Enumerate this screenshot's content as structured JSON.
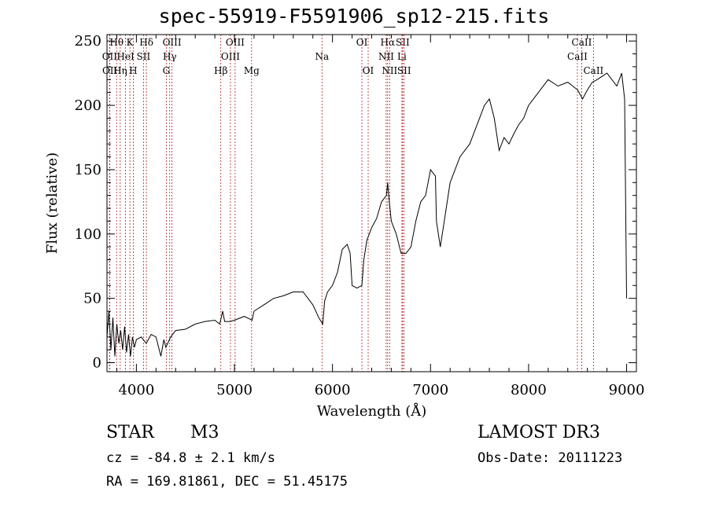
{
  "chart_data": {
    "type": "line",
    "title": "spec-55919-F5591906_sp12-215.fits",
    "xlabel": "Wavelength (Å)",
    "ylabel": "Flux (relative)",
    "xlim": [
      3700,
      9100
    ],
    "ylim": [
      -7,
      255
    ],
    "xticks": [
      4000,
      5000,
      6000,
      7000,
      8000,
      9000
    ],
    "yticks": [
      0,
      50,
      100,
      150,
      200,
      250
    ],
    "line_color": "#b22222",
    "series": [
      {
        "name": "flux",
        "x": [
          3700,
          3720,
          3740,
          3760,
          3780,
          3800,
          3820,
          3840,
          3860,
          3880,
          3900,
          3920,
          3940,
          3960,
          3980,
          4000,
          4050,
          4100,
          4150,
          4200,
          4250,
          4280,
          4300,
          4350,
          4400,
          4500,
          4600,
          4700,
          4800,
          4850,
          4880,
          4900,
          4950,
          5000,
          5100,
          5180,
          5200,
          5300,
          5400,
          5500,
          5600,
          5700,
          5800,
          5860,
          5900,
          5920,
          5950,
          6000,
          6050,
          6100,
          6150,
          6180,
          6200,
          6250,
          6300,
          6320,
          6350,
          6400,
          6450,
          6500,
          6550,
          6563,
          6580,
          6600,
          6650,
          6700,
          6750,
          6800,
          6850,
          6900,
          6950,
          7000,
          7050,
          7060,
          7100,
          7150,
          7200,
          7300,
          7400,
          7500,
          7550,
          7600,
          7650,
          7700,
          7750,
          7800,
          7850,
          7900,
          7950,
          8000,
          8100,
          8200,
          8300,
          8400,
          8500,
          8550,
          8600,
          8650,
          8700,
          8800,
          8900,
          8950,
          8980,
          9000
        ],
        "y": [
          20,
          40,
          10,
          35,
          5,
          30,
          15,
          25,
          10,
          28,
          8,
          22,
          5,
          20,
          12,
          18,
          20,
          15,
          22,
          20,
          5,
          18,
          12,
          20,
          25,
          26,
          30,
          32,
          33,
          30,
          40,
          32,
          32,
          33,
          36,
          33,
          40,
          45,
          50,
          52,
          55,
          55,
          45,
          35,
          30,
          48,
          55,
          60,
          70,
          88,
          92,
          85,
          60,
          58,
          60,
          80,
          95,
          105,
          112,
          125,
          130,
          140,
          125,
          110,
          100,
          85,
          85,
          90,
          110,
          125,
          130,
          150,
          145,
          110,
          90,
          115,
          140,
          160,
          170,
          190,
          200,
          205,
          190,
          165,
          175,
          170,
          178,
          185,
          190,
          200,
          210,
          220,
          215,
          218,
          212,
          205,
          212,
          218,
          220,
          225,
          215,
          225,
          205,
          50
        ]
      }
    ],
    "line_labels": [
      {
        "text": "Hθ",
        "x": 3798,
        "row": 1
      },
      {
        "text": "K",
        "x": 3934,
        "row": 1
      },
      {
        "text": "Hδ",
        "x": 4102,
        "row": 1
      },
      {
        "text": "OIII",
        "x": 4363,
        "row": 1
      },
      {
        "text": "OIII",
        "x": 5007,
        "row": 1
      },
      {
        "text": "OI",
        "x": 6300,
        "row": 1
      },
      {
        "text": "Hα",
        "x": 6563,
        "row": 1
      },
      {
        "text": "SII",
        "x": 6716,
        "row": 1
      },
      {
        "text": "CaII",
        "x": 8542,
        "row": 1
      },
      {
        "text": "OII",
        "x": 3727,
        "row": 2
      },
      {
        "text": "HeI",
        "x": 3889,
        "row": 2
      },
      {
        "text": "SII",
        "x": 4072,
        "row": 2
      },
      {
        "text": "Hγ",
        "x": 4340,
        "row": 2
      },
      {
        "text": "OIII",
        "x": 4959,
        "row": 2
      },
      {
        "text": "Na",
        "x": 5893,
        "row": 2
      },
      {
        "text": "NII",
        "x": 6548,
        "row": 2
      },
      {
        "text": "Li",
        "x": 6708,
        "row": 2
      },
      {
        "text": "CaII",
        "x": 8498,
        "row": 2
      },
      {
        "text": "OII",
        "x": 3729,
        "row": 3
      },
      {
        "text": "Hη",
        "x": 3835,
        "row": 3
      },
      {
        "text": "H",
        "x": 3968,
        "row": 3
      },
      {
        "text": "G",
        "x": 4305,
        "row": 3
      },
      {
        "text": "Hβ",
        "x": 4861,
        "row": 3
      },
      {
        "text": "Mg",
        "x": 5175,
        "row": 3
      },
      {
        "text": "OI",
        "x": 6364,
        "row": 3
      },
      {
        "text": "NII",
        "x": 6583,
        "row": 3
      },
      {
        "text": "SII",
        "x": 6731,
        "row": 3
      },
      {
        "text": "CaII",
        "x": 8662,
        "row": 3
      }
    ]
  },
  "info": {
    "class": "STAR",
    "subclass": "M3",
    "survey": "LAMOST DR3",
    "cz": "cz = -84.8 ± 2.1 km/s",
    "obsdate": "Obs-Date: 20111223",
    "radec": "RA = 169.81861, DEC =  51.45175"
  }
}
